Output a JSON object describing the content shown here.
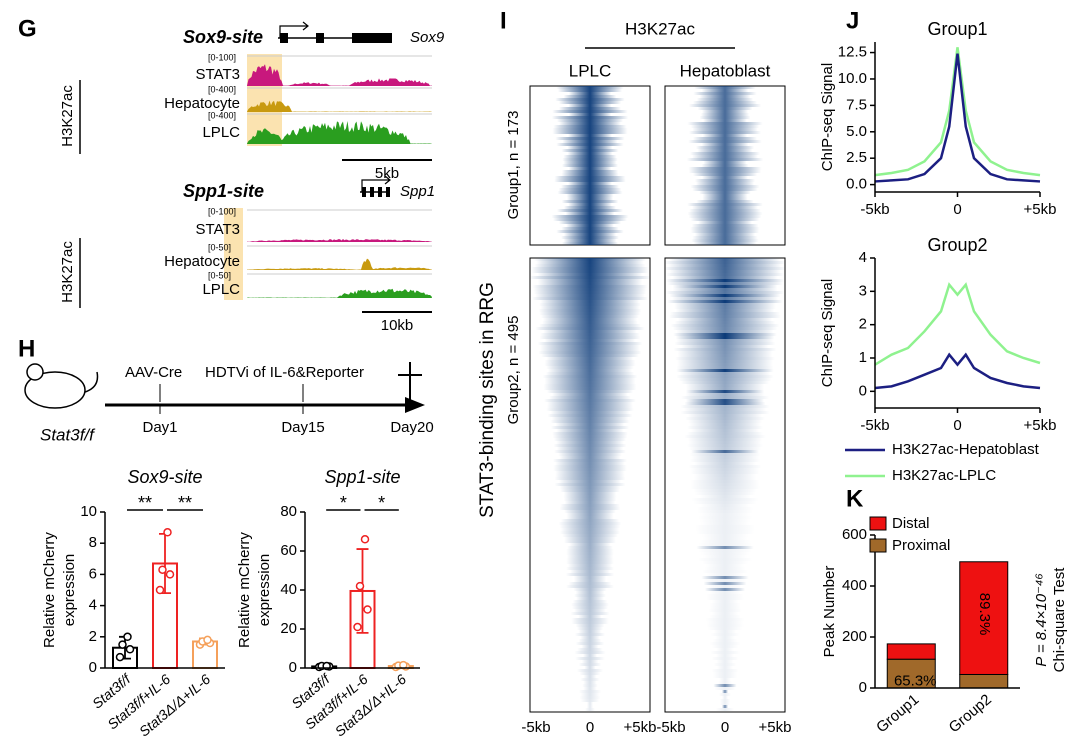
{
  "panels": {
    "G": {
      "letter": "G",
      "loci": [
        {
          "title": "Sox9-site",
          "gene": "Sox9",
          "tracks": [
            {
              "name": "STAT3",
              "range": "[0-100]"
            },
            {
              "name": "Hepatocyte",
              "range": "[0-400]"
            },
            {
              "name": "LPLC",
              "range": "[0-400]"
            }
          ],
          "group_label": "H3K27ac",
          "scale": "5kb"
        },
        {
          "title": "Spp1-site",
          "gene": "Spp1",
          "tracks": [
            {
              "name": "STAT3",
              "range": "[0-100]"
            },
            {
              "name": "Hepatocyte",
              "range": "[0-50]"
            },
            {
              "name": "LPLC",
              "range": "[0-50]"
            }
          ],
          "group_label": "H3K27ac",
          "scale": "10kb"
        }
      ]
    },
    "H": {
      "letter": "H",
      "mouse": "Stat3f/f",
      "events": [
        {
          "label": "AAV-Cre",
          "day": "Day1"
        },
        {
          "label": "HDTVi of IL-6&Reporter",
          "day": "Day15"
        }
      ],
      "end": "Day20"
    },
    "I": {
      "letter": "I",
      "mark": "H3K27ac",
      "columns": [
        "LPLC",
        "Hepatoblast"
      ],
      "groups": [
        "Group1, n = 173",
        "Group2, n = 495"
      ],
      "ylabel": "STAT3-binding sites in RRG",
      "xticks": [
        "-5kb",
        "0",
        "+5kb"
      ]
    },
    "J": {
      "letter": "J"
    },
    "K": {
      "letter": "K"
    }
  },
  "chart_data": [
    {
      "type": "bar",
      "title": "Sox9-site",
      "ylabel": [
        "Relative mCherry",
        "expression"
      ],
      "categories": [
        "Stat3f/f",
        "Stat3f/f+IL-6",
        "Stat3Δ/Δ+IL-6"
      ],
      "values": [
        1.3,
        6.7,
        1.7
      ],
      "errors": [
        0.7,
        1.9,
        0.2
      ],
      "points": [
        [
          0.7,
          1.2,
          1.5,
          2.0
        ],
        [
          5.0,
          6.0,
          6.3,
          8.7
        ],
        [
          1.5,
          1.6,
          1.7,
          1.8
        ]
      ],
      "colors": [
        "#000000",
        "#ee2222",
        "#f5a05a"
      ],
      "significance": [
        "**",
        "**"
      ],
      "ylim": [
        0,
        10
      ],
      "yticks": [
        0,
        2,
        4,
        6,
        8,
        10
      ]
    },
    {
      "type": "bar",
      "title": "Spp1-site",
      "ylabel": [
        "Relative mCherry",
        "expression"
      ],
      "categories": [
        "Stat3f/f",
        "Stat3f/f+IL-6",
        "Stat3Δ/Δ+IL-6"
      ],
      "values": [
        0.8,
        39.5,
        1.0
      ],
      "errors": [
        0.3,
        21.5,
        0.5
      ],
      "points": [
        [
          0.5,
          0.8,
          1.0,
          1.0
        ],
        [
          21,
          30,
          42,
          66
        ],
        [
          0.5,
          0.8,
          1.2,
          1.5
        ]
      ],
      "colors": [
        "#000000",
        "#ee2222",
        "#f5a05a"
      ],
      "significance": [
        "*",
        "*"
      ],
      "ylim": [
        0,
        80
      ],
      "yticks": [
        0,
        20,
        40,
        60,
        80
      ]
    },
    {
      "type": "line",
      "title": "Group1",
      "ylabel": "ChIP-seq Signal",
      "x": [
        -5,
        -4,
        -3,
        -2,
        -1,
        -0.5,
        0,
        0.5,
        1,
        2,
        3,
        4,
        5
      ],
      "series": [
        {
          "name": "H3K27ac-Hepatoblast",
          "color": "#1c1f82",
          "values": [
            0.3,
            0.4,
            0.5,
            1.0,
            2.5,
            5.5,
            12.4,
            5.5,
            2.5,
            1.0,
            0.5,
            0.4,
            0.3
          ]
        },
        {
          "name": "H3K27ac-LPLC",
          "color": "#8ff28f",
          "values": [
            0.9,
            1.1,
            1.4,
            2.2,
            4.0,
            7.0,
            13.0,
            7.0,
            4.0,
            2.2,
            1.4,
            1.1,
            0.9
          ]
        }
      ],
      "xlim": [
        -5,
        5
      ],
      "xticks": [
        {
          "value": -5,
          "label": "-5kb"
        },
        0,
        {
          "value": 5,
          "label": "+5kb"
        }
      ],
      "ylim": [
        -0.7,
        13.5
      ],
      "yticks": [
        {
          "value": 0,
          "label": "0.0"
        },
        2.5,
        {
          "value": 5,
          "label": "5.0"
        },
        7.5,
        {
          "value": 10,
          "label": "10.0"
        },
        12.5
      ]
    },
    {
      "type": "line",
      "title": "Group2",
      "ylabel": "ChIP-seq Signal",
      "x": [
        -5,
        -4,
        -3,
        -2,
        -1,
        -0.5,
        0,
        0.5,
        1,
        2,
        3,
        4,
        5
      ],
      "series": [
        {
          "color": "#1c1f82",
          "values": [
            0.1,
            0.15,
            0.3,
            0.5,
            0.7,
            1.1,
            0.8,
            1.1,
            0.7,
            0.4,
            0.25,
            0.15,
            0.1
          ]
        },
        {
          "color": "#8ff28f",
          "values": [
            0.8,
            1.1,
            1.3,
            1.8,
            2.4,
            3.2,
            2.9,
            3.2,
            2.4,
            1.7,
            1.2,
            1.0,
            0.85
          ]
        }
      ],
      "xlim": [
        -5,
        5
      ],
      "xticks": [
        {
          "value": -5,
          "label": "-5kb"
        },
        0,
        {
          "value": 5,
          "label": "+5kb"
        }
      ],
      "ylim": [
        -0.5,
        4
      ],
      "yticks": [
        0,
        1,
        2,
        3,
        4
      ]
    },
    {
      "type": "stacked_bar",
      "ylabel": "Peak Number",
      "categories": [
        "Group1",
        "Group2"
      ],
      "series": [
        {
          "name": "Proximal",
          "color": "#a0692a",
          "values": [
            113,
            53
          ]
        },
        {
          "name": "Distal",
          "color": "#ee1111",
          "values": [
            60,
            442
          ]
        }
      ],
      "annotations": [
        "65.3%",
        "89.3%"
      ],
      "notes": [
        "P = 8.4×10⁻⁴⁶",
        "Chi-square Test"
      ],
      "ylim": [
        0,
        600
      ],
      "yticks": [
        0,
        200,
        400,
        600
      ]
    }
  ]
}
